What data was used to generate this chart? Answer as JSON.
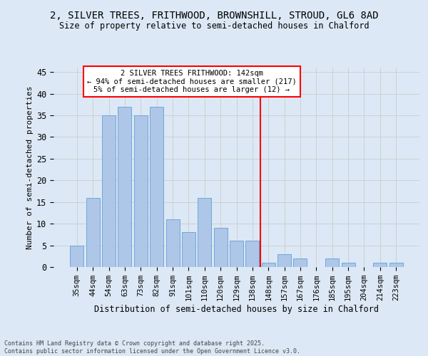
{
  "title_line1": "2, SILVER TREES, FRITHWOOD, BROWNSHILL, STROUD, GL6 8AD",
  "title_line2": "Size of property relative to semi-detached houses in Chalford",
  "xlabel": "Distribution of semi-detached houses by size in Chalford",
  "ylabel": "Number of semi-detached properties",
  "bar_labels": [
    "35sqm",
    "44sqm",
    "54sqm",
    "63sqm",
    "73sqm",
    "82sqm",
    "91sqm",
    "101sqm",
    "110sqm",
    "120sqm",
    "129sqm",
    "138sqm",
    "148sqm",
    "157sqm",
    "167sqm",
    "176sqm",
    "185sqm",
    "195sqm",
    "204sqm",
    "214sqm",
    "223sqm"
  ],
  "bar_values": [
    5,
    16,
    35,
    37,
    35,
    37,
    11,
    8,
    16,
    9,
    6,
    6,
    1,
    3,
    2,
    0,
    2,
    1,
    0,
    1,
    1
  ],
  "bar_color": "#AEC6E8",
  "bar_edge_color": "#6FA8D6",
  "grid_color": "#cccccc",
  "vline_index": 11.5,
  "vline_color": "red",
  "annotation_text": "2 SILVER TREES FRITHWOOD: 142sqm\n← 94% of semi-detached houses are smaller (217)\n5% of semi-detached houses are larger (12) →",
  "annotation_box_color": "white",
  "annotation_box_edge_color": "red",
  "ylim": [
    0,
    46
  ],
  "yticks": [
    0,
    5,
    10,
    15,
    20,
    25,
    30,
    35,
    40,
    45
  ],
  "footer_text": "Contains HM Land Registry data © Crown copyright and database right 2025.\nContains public sector information licensed under the Open Government Licence v3.0.",
  "background_color": "#dce8f5",
  "plot_background_color": "#dce8f5",
  "title_fontsize": 10,
  "subtitle_fontsize": 8.5,
  "tick_fontsize": 7.5,
  "ytick_fontsize": 8.5,
  "ylabel_fontsize": 8,
  "xlabel_fontsize": 8.5,
  "annotation_fontsize": 7.5,
  "footer_fontsize": 6
}
